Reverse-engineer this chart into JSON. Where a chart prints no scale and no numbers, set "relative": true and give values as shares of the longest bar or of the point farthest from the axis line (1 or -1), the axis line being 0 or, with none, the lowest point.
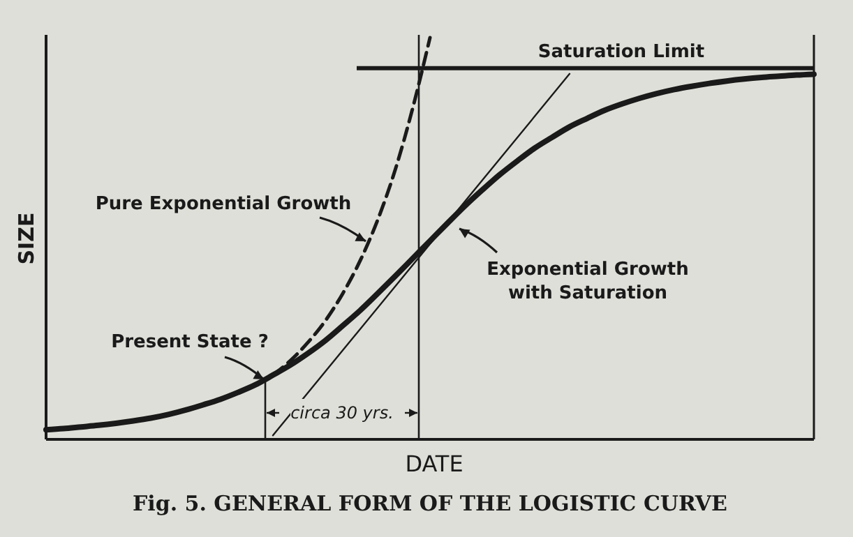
{
  "chart_data": {
    "type": "line",
    "relative": true,
    "title": "Fig. 5. GENERAL FORM OF THE LOGISTIC CURVE",
    "xlabel": "DATE",
    "ylabel": "SIZE",
    "categories": [
      null,
      null,
      null,
      null,
      null,
      null,
      null,
      null,
      null,
      null,
      null,
      null,
      null,
      null,
      null,
      null,
      null,
      null,
      null,
      null,
      null,
      null,
      null,
      null,
      null,
      null,
      null,
      null,
      null,
      null,
      null,
      null,
      null,
      null,
      null,
      null,
      null,
      null,
      null,
      null,
      null,
      null,
      null,
      null,
      null
    ],
    "series": [
      {
        "name": "Exponential Growth with Saturation",
        "color": "#1a1a1a",
        "line_style": "solid",
        "values": [
          0.024,
          0.027,
          0.031,
          0.035,
          0.04,
          0.046,
          0.053,
          0.062,
          0.073,
          0.086,
          0.1,
          0.117,
          0.136,
          0.16,
          0.185,
          0.214,
          0.246,
          0.283,
          0.321,
          0.363,
          0.406,
          0.45,
          0.494,
          0.538,
          0.581,
          0.621,
          0.659,
          0.693,
          0.725,
          0.752,
          0.778,
          0.799,
          0.819,
          0.835,
          0.849,
          0.861,
          0.871,
          0.879,
          0.886,
          0.892,
          0.897,
          0.901,
          0.904,
          0.907,
          0.909
        ]
      },
      {
        "name": "Pure Exponential Growth",
        "color": "#1a1a1a",
        "line_style": "dashed",
        "values": [
          null,
          null,
          null,
          null,
          null,
          null,
          null,
          null,
          null,
          null,
          null,
          null,
          null,
          0.16,
          0.196,
          0.241,
          0.295,
          0.363,
          0.445,
          0.546,
          0.67,
          0.823,
          1.0,
          null,
          null,
          null,
          null,
          null,
          null,
          null,
          null,
          null,
          null,
          null,
          null,
          null,
          null,
          null,
          null,
          null,
          null,
          null,
          null,
          null,
          null
        ]
      },
      {
        "color": "#1a1a1a",
        "line_style": "solid",
        "values": [
          null,
          null,
          null,
          null,
          null,
          null,
          null,
          null,
          null,
          null,
          null,
          null,
          null,
          0.01,
          null,
          null,
          null,
          null,
          null,
          null,
          null,
          null,
          null,
          null,
          null,
          null,
          null,
          null,
          null,
          null,
          0.91,
          null,
          null,
          null,
          null,
          null,
          null,
          null,
          null,
          null,
          null,
          null,
          null,
          null,
          null
        ]
      }
    ],
    "ref_lines": [
      {
        "axis": "y",
        "value": 0.924,
        "label": "Saturation Limit",
        "color": "#1a1a1a"
      }
    ],
    "annotations": [
      "Present State ?",
      "circa 30 yrs."
    ]
  }
}
